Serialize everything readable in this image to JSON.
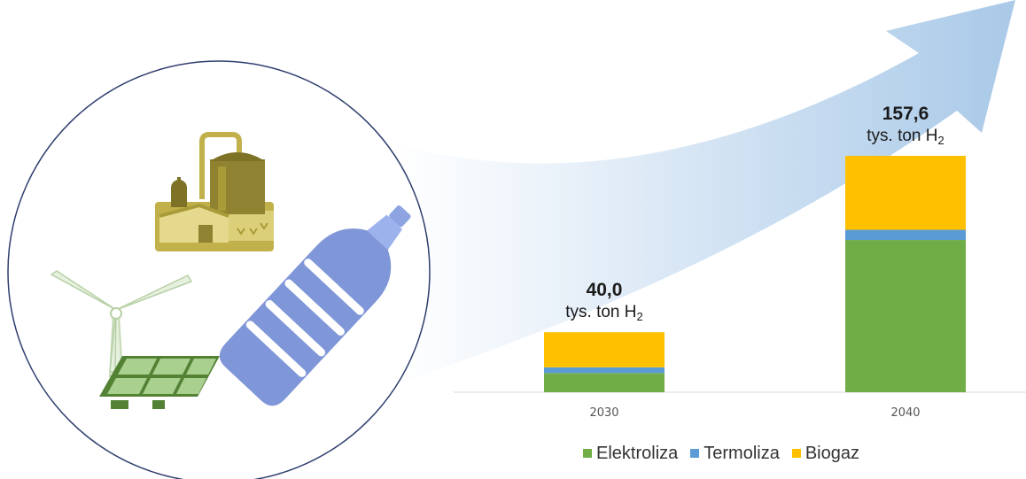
{
  "chart_data": {
    "type": "bar",
    "stacked": true,
    "categories": [
      "2030",
      "2040"
    ],
    "series": [
      {
        "name": "Elektroliza",
        "color": "#70AD47",
        "values": [
          12.8,
          101.5
        ]
      },
      {
        "name": "Termoliza",
        "color": "#5B9BD5",
        "values": [
          3.8,
          6.8
        ]
      },
      {
        "name": "Biogaz",
        "color": "#FFC000",
        "values": [
          23.4,
          49.3
        ]
      }
    ],
    "totals": [
      {
        "value": "40,0",
        "unit": "tys. ton H",
        "unit_sub": "2"
      },
      {
        "value": "157,6",
        "unit": "tys. ton H",
        "unit_sub": "2"
      }
    ],
    "ylim": [
      0,
      170
    ],
    "grid": false,
    "legend_position": "bottom"
  },
  "illustration": {
    "icons": [
      "biogas-plant-icon",
      "wind-turbine-icon",
      "solar-panel-icon",
      "plastic-bottle-icon"
    ],
    "circle_color": "#2F3E6E",
    "arrow_color": "#9DC3E6"
  }
}
